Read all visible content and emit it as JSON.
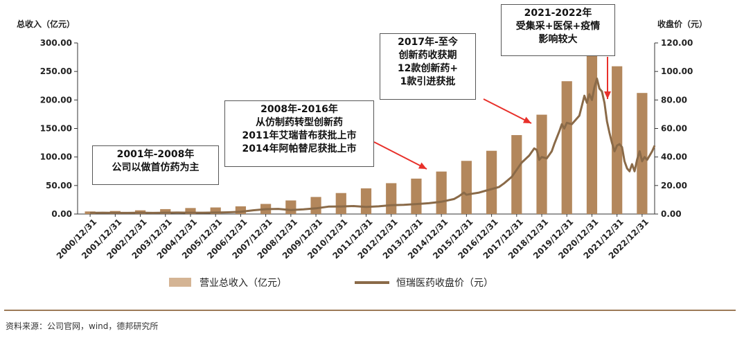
{
  "chart_data": {
    "type": "bar+line",
    "categories": [
      "2000/12/31",
      "2001/12/31",
      "2002/12/31",
      "2003/12/31",
      "2004/12/31",
      "2005/12/31",
      "2006/12/31",
      "2007/12/31",
      "2008/12/31",
      "2009/12/31",
      "2010/12/31",
      "2011/12/31",
      "2012/12/31",
      "2013/12/31",
      "2014/12/31",
      "2015/12/31",
      "2016/12/31",
      "2017/12/31",
      "2018/12/31",
      "2019/12/31",
      "2020/12/31",
      "2021/12/31",
      "2022/12/31"
    ],
    "series": [
      {
        "name": "营业总收入（亿元）",
        "type": "bar",
        "axis": "left",
        "color": "#b3875c",
        "values": [
          4.5,
          5.3,
          6.5,
          8.6,
          10.5,
          11.5,
          13.5,
          17.7,
          23.8,
          29.9,
          36.8,
          45.0,
          54.1,
          62.1,
          74.5,
          93.2,
          110.9,
          138.4,
          174.2,
          232.9,
          277.4,
          259.1,
          212.3
        ]
      },
      {
        "name": "恒瑞医药收盘价（元）",
        "type": "line",
        "axis": "right",
        "color": "#8a6a48",
        "points": [
          [
            2000.5,
            0.8
          ],
          [
            2001.0,
            0.9
          ],
          [
            2001.5,
            0.8
          ],
          [
            2002.0,
            0.8
          ],
          [
            2002.5,
            0.9
          ],
          [
            2003.0,
            0.8
          ],
          [
            2003.5,
            0.9
          ],
          [
            2004.0,
            1.0
          ],
          [
            2004.5,
            0.9
          ],
          [
            2005.0,
            0.9
          ],
          [
            2005.5,
            1.0
          ],
          [
            2006.0,
            1.2
          ],
          [
            2006.5,
            1.6
          ],
          [
            2007.0,
            2.6
          ],
          [
            2007.5,
            3.4
          ],
          [
            2008.0,
            3.6
          ],
          [
            2008.5,
            2.8
          ],
          [
            2009.0,
            3.3
          ],
          [
            2009.5,
            4.0
          ],
          [
            2010.0,
            5.2
          ],
          [
            2010.5,
            5.3
          ],
          [
            2011.0,
            5.6
          ],
          [
            2011.5,
            5.0
          ],
          [
            2012.0,
            5.4
          ],
          [
            2012.5,
            6.2
          ],
          [
            2013.0,
            6.4
          ],
          [
            2013.5,
            7.0
          ],
          [
            2014.0,
            7.6
          ],
          [
            2014.5,
            8.6
          ],
          [
            2015.0,
            10.5
          ],
          [
            2015.2,
            12.5
          ],
          [
            2015.4,
            15.0
          ],
          [
            2015.5,
            13.5
          ],
          [
            2015.7,
            14.2
          ],
          [
            2016.0,
            15.0
          ],
          [
            2016.3,
            16.5
          ],
          [
            2016.5,
            17.5
          ],
          [
            2016.8,
            19.0
          ],
          [
            2017.0,
            21.5
          ],
          [
            2017.3,
            26.0
          ],
          [
            2017.5,
            31.0
          ],
          [
            2017.7,
            36.0
          ],
          [
            2018.0,
            41.0
          ],
          [
            2018.2,
            46.0
          ],
          [
            2018.3,
            45.0
          ],
          [
            2018.4,
            38.0
          ],
          [
            2018.5,
            40.0
          ],
          [
            2018.7,
            39.0
          ],
          [
            2018.9,
            44.0
          ],
          [
            2019.0,
            49.0
          ],
          [
            2019.2,
            58.0
          ],
          [
            2019.3,
            63.0
          ],
          [
            2019.4,
            60.0
          ],
          [
            2019.5,
            64.0
          ],
          [
            2019.7,
            63.0
          ],
          [
            2019.9,
            67.0
          ],
          [
            2020.0,
            69.0
          ],
          [
            2020.1,
            76.0
          ],
          [
            2020.2,
            83.0
          ],
          [
            2020.3,
            78.0
          ],
          [
            2020.4,
            84.0
          ],
          [
            2020.5,
            80.0
          ],
          [
            2020.6,
            89.0
          ],
          [
            2020.7,
            95.0
          ],
          [
            2020.8,
            88.0
          ],
          [
            2020.9,
            86.0
          ],
          [
            2021.0,
            78.0
          ],
          [
            2021.1,
            65.0
          ],
          [
            2021.2,
            57.0
          ],
          [
            2021.3,
            50.0
          ],
          [
            2021.4,
            44.0
          ],
          [
            2021.5,
            48.0
          ],
          [
            2021.6,
            49.0
          ],
          [
            2021.7,
            47.0
          ],
          [
            2021.8,
            37.0
          ],
          [
            2021.9,
            32.0
          ],
          [
            2022.0,
            30.0
          ],
          [
            2022.1,
            35.0
          ],
          [
            2022.2,
            30.0
          ],
          [
            2022.3,
            38.0
          ],
          [
            2022.4,
            44.0
          ],
          [
            2022.5,
            37.0
          ],
          [
            2022.6,
            40.0
          ],
          [
            2022.7,
            38.0
          ],
          [
            2022.8,
            41.0
          ],
          [
            2022.9,
            44.0
          ],
          [
            2023.0,
            48.0
          ]
        ]
      }
    ],
    "ylabel_left": "总收入（亿元）",
    "ylabel_right": "收盘价（元）",
    "yticks_left": [
      "300.00",
      "250.00",
      "200.00",
      "150.00",
      "100.00",
      "50.00",
      "0.00"
    ],
    "yticks_right": [
      "120.00",
      "100.00",
      "80.00",
      "60.00",
      "40.00",
      "20.00",
      "0.00"
    ],
    "ylim_left": [
      0,
      300
    ],
    "ylim_right": [
      0,
      120
    ],
    "legend": {
      "placement": "bottom-center",
      "bar_label": "营业总收入（亿元）",
      "line_label": "恒瑞医药收盘价（元）"
    },
    "annotations": [
      {
        "id": "ann1",
        "lines": [
          "2001年-2008年",
          "公司以做首仿药为主"
        ]
      },
      {
        "id": "ann2",
        "lines": [
          "2008年-2016年",
          "从仿制药转型创新药",
          "2011年艾瑞昔布获批上市",
          "2014年阿帕替尼获批上市"
        ]
      },
      {
        "id": "ann3",
        "lines": [
          "2017年-至今",
          "创新药收获期",
          "12款创新药+",
          "1款引进获批"
        ]
      },
      {
        "id": "ann4",
        "lines": [
          "2021-2022年",
          "受集采+医保+疫情",
          "影响较大"
        ]
      }
    ],
    "arrow_color": "#e8302a"
  },
  "source": "资料来源：公司官网，wind，德邦研究所"
}
